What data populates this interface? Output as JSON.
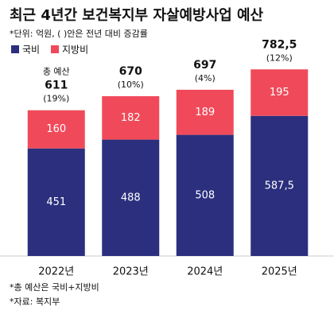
{
  "chart_data": {
    "type": "stacked-bar",
    "title": "최근 4년간 보건복지부 자살예방사업 예산",
    "subtitle": "*단위: 억원, ( )안은 전년 대비 증감률",
    "categories": [
      "2022년",
      "2023년",
      "2024년",
      "2025년"
    ],
    "series": [
      {
        "name": "국비",
        "color": "#2b2f7e",
        "values": [
          451,
          488,
          508,
          587.5
        ],
        "value_labels": [
          "451",
          "488",
          "508",
          "587,5"
        ]
      },
      {
        "name": "지방비",
        "color": "#f04a5a",
        "values": [
          160,
          182,
          189,
          195
        ]
      }
    ],
    "totals": {
      "values": [
        611,
        670,
        697,
        782.5
      ],
      "value_labels": [
        "611",
        "670",
        "697",
        "782,5"
      ]
    },
    "growth": {
      "values": [
        19,
        10,
        4,
        12
      ],
      "value_labels": [
        "(19%)",
        "(10%)",
        "(4%)",
        "(12%)"
      ]
    },
    "annotation": "총 예산",
    "notes": [
      "*총 예산은 국비+지방비",
      "*자료: 복지부"
    ]
  }
}
